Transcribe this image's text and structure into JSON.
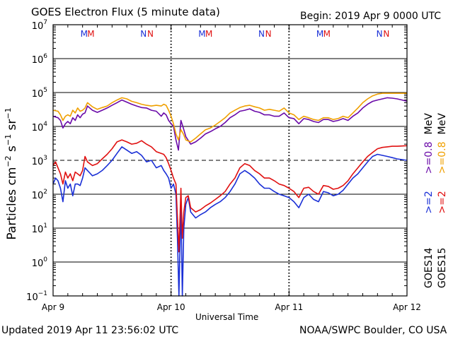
{
  "header": {
    "title": "GOES Electron Flux (5 minute data)",
    "begin": "Begin: 2019 Apr 9 0000 UTC"
  },
  "footer": {
    "updated": "Updated 2019 Apr 11 23:56:02 UTC",
    "credit": "NOAA/SWPC Boulder, CO USA"
  },
  "chart_data": {
    "type": "line",
    "title": "GOES Electron Flux (5 minute data)",
    "xlabel": "Universal Time",
    "ylabel": "Particles cm-2 s-1 sr-1",
    "y_scale": "log",
    "ylim": [
      0.1,
      10000000
    ],
    "xlim": [
      0,
      72
    ],
    "x_unit": "hours since 2019 Apr 9 0000 UTC",
    "x_tick_labels": [
      {
        "x": 0,
        "label": "Apr 9"
      },
      {
        "x": 24,
        "label": "Apr 10"
      },
      {
        "x": 48,
        "label": "Apr 11"
      },
      {
        "x": 72,
        "label": "Apr 12"
      }
    ],
    "y_ticks": [
      {
        "value": 0.1,
        "mantissa": "10",
        "exp": "−1"
      },
      {
        "value": 1,
        "mantissa": "10",
        "exp": "0"
      },
      {
        "value": 10,
        "mantissa": "10",
        "exp": "1"
      },
      {
        "value": 100,
        "mantissa": "10",
        "exp": "2"
      },
      {
        "value": 1000,
        "mantissa": "10",
        "exp": "3"
      },
      {
        "value": 10000,
        "mantissa": "10",
        "exp": "4"
      },
      {
        "value": 100000,
        "mantissa": "10",
        "exp": "5"
      },
      {
        "value": 1000000,
        "mantissa": "10",
        "exp": "6"
      },
      {
        "value": 10000000,
        "mantissa": "10",
        "exp": "7"
      }
    ],
    "threshold_line": {
      "value": 1000,
      "style": "dashed"
    },
    "markers": [
      {
        "x": 6.3,
        "label": "M",
        "color": "#1a2fd6"
      },
      {
        "x": 7.7,
        "label": "M",
        "color": "#e01010"
      },
      {
        "x": 18.4,
        "label": "N",
        "color": "#1a2fd6"
      },
      {
        "x": 19.8,
        "label": "N",
        "color": "#e01010"
      },
      {
        "x": 30.3,
        "label": "M",
        "color": "#1a2fd6"
      },
      {
        "x": 31.7,
        "label": "M",
        "color": "#e01010"
      },
      {
        "x": 42.4,
        "label": "N",
        "color": "#1a2fd6"
      },
      {
        "x": 43.8,
        "label": "N",
        "color": "#e01010"
      },
      {
        "x": 54.3,
        "label": "M",
        "color": "#1a2fd6"
      },
      {
        "x": 55.7,
        "label": "M",
        "color": "#e01010"
      },
      {
        "x": 66.4,
        "label": "N",
        "color": "#1a2fd6"
      },
      {
        "x": 67.8,
        "label": "N",
        "color": "#e01010"
      }
    ],
    "legend": {
      "placement": "right-vertical",
      "groups": [
        {
          "satellite": "GOES14",
          "entries": [
            {
              "text": ">=2",
              "color": "#1a2fd6"
            },
            {
              "text": ">=0.8",
              "color": "#6a0aa8"
            }
          ]
        },
        {
          "satellite": "GOES15",
          "entries": [
            {
              "text": ">=2",
              "color": "#e01010"
            },
            {
              "text": ">=0.8",
              "color": "#f0a000"
            }
          ]
        }
      ],
      "unit": "MeV"
    },
    "series": [
      {
        "name": "GOES14 >=0.8 MeV",
        "color": "#6a0aa8",
        "x": [
          0,
          1,
          1.5,
          2,
          2.5,
          3,
          3.5,
          4,
          4.5,
          5,
          5.5,
          6,
          6.5,
          7,
          8,
          9,
          10,
          11,
          12,
          13,
          14,
          15,
          16,
          17,
          18,
          19,
          20,
          21,
          22,
          22.5,
          23,
          23.5,
          24,
          24.5,
          25,
          25.5,
          26,
          26.5,
          27,
          28,
          29,
          30,
          31,
          32,
          33,
          34,
          35,
          36,
          37,
          38,
          39,
          40,
          41,
          42,
          43,
          44,
          45,
          46,
          47,
          48,
          49,
          50,
          51,
          52,
          53,
          54,
          55,
          56,
          57,
          58,
          59,
          60,
          61,
          62,
          63,
          64,
          65,
          66,
          67,
          68,
          69,
          70,
          71,
          72
        ],
        "y": [
          20000,
          18000,
          15000,
          9000,
          12000,
          14000,
          12000,
          18000,
          15000,
          22000,
          18000,
          23000,
          25000,
          40000,
          30000,
          26000,
          30000,
          35000,
          42000,
          50000,
          60000,
          52000,
          45000,
          40000,
          36000,
          35000,
          30000,
          28000,
          20000,
          25000,
          22000,
          15000,
          12000,
          10000,
          4000,
          2000,
          15000,
          9000,
          5000,
          3000,
          3500,
          4500,
          6000,
          7000,
          8500,
          10000,
          13000,
          18000,
          22000,
          28000,
          30000,
          33000,
          28000,
          26000,
          22000,
          22000,
          20000,
          20000,
          25000,
          18000,
          17000,
          12000,
          17000,
          16000,
          14000,
          13000,
          16000,
          16000,
          14000,
          15000,
          17000,
          15000,
          20000,
          25000,
          35000,
          45000,
          55000,
          60000,
          65000,
          70000,
          68000,
          65000,
          60000,
          55000
        ]
      },
      {
        "name": "GOES15 >=0.8 MeV",
        "color": "#f0a000",
        "x": [
          0,
          1,
          1.5,
          2,
          2.5,
          3,
          3.5,
          4,
          4.5,
          5,
          5.5,
          6,
          6.5,
          7,
          8,
          9,
          10,
          11,
          12,
          13,
          14,
          15,
          16,
          17,
          18,
          19,
          20,
          21,
          22,
          22.5,
          23,
          23.5,
          24,
          24.5,
          25,
          25.5,
          26,
          26.5,
          27,
          28,
          29,
          30,
          31,
          32,
          33,
          34,
          35,
          36,
          37,
          38,
          39,
          40,
          41,
          42,
          43,
          44,
          45,
          46,
          47,
          48,
          49,
          50,
          51,
          52,
          53,
          54,
          55,
          56,
          57,
          58,
          59,
          60,
          61,
          62,
          63,
          64,
          65,
          66,
          67,
          68,
          69,
          70,
          71,
          72
        ],
        "y": [
          30000,
          28000,
          22000,
          15000,
          20000,
          22000,
          20000,
          30000,
          25000,
          35000,
          28000,
          30000,
          35000,
          50000,
          38000,
          32000,
          36000,
          40000,
          50000,
          60000,
          70000,
          65000,
          55000,
          50000,
          45000,
          42000,
          40000,
          42000,
          40000,
          45000,
          42000,
          30000,
          20000,
          12000,
          6000,
          4000,
          8000,
          6000,
          4000,
          3500,
          4500,
          6000,
          8000,
          9000,
          11000,
          14000,
          18000,
          25000,
          30000,
          36000,
          40000,
          42000,
          38000,
          35000,
          30000,
          32000,
          30000,
          28000,
          35000,
          25000,
          22000,
          16000,
          20000,
          18000,
          16000,
          15000,
          18000,
          18000,
          16000,
          17000,
          20000,
          18000,
          25000,
          35000,
          50000,
          65000,
          80000,
          90000,
          95000,
          95000,
          95000,
          95000,
          95000,
          95000
        ]
      },
      {
        "name": "GOES14 >=2 MeV",
        "color": "#1a2fd6",
        "x": [
          0,
          0.5,
          1,
          1.5,
          2,
          2.5,
          3,
          3.5,
          4,
          4.5,
          5,
          5.5,
          6,
          6.5,
          7,
          8,
          9,
          10,
          11,
          12,
          13,
          14,
          15,
          16,
          17,
          18,
          19,
          20,
          21,
          22,
          22.5,
          23,
          23.5,
          24,
          24.5,
          25,
          25.3,
          25.6,
          26,
          26.3,
          26.6,
          27,
          27.5,
          28,
          29,
          30,
          31,
          32,
          33,
          34,
          35,
          36,
          37,
          38,
          39,
          40,
          41,
          42,
          43,
          44,
          45,
          46,
          47,
          48,
          49,
          50,
          51,
          52,
          53,
          54,
          55,
          56,
          57,
          58,
          59,
          60,
          61,
          62,
          63,
          64,
          65,
          66,
          67,
          68,
          69,
          70,
          71,
          72
        ],
        "y": [
          200,
          300,
          250,
          150,
          60,
          250,
          150,
          200,
          90,
          200,
          200,
          180,
          300,
          600,
          500,
          350,
          400,
          500,
          700,
          1000,
          1600,
          2500,
          2000,
          1600,
          1800,
          1400,
          900,
          1000,
          600,
          700,
          500,
          400,
          300,
          150,
          200,
          100,
          5,
          0.1,
          60,
          0.1,
          10,
          50,
          80,
          30,
          20,
          25,
          30,
          40,
          50,
          60,
          80,
          120,
          200,
          400,
          500,
          400,
          300,
          200,
          150,
          150,
          120,
          100,
          90,
          80,
          60,
          40,
          80,
          100,
          70,
          60,
          120,
          110,
          90,
          100,
          130,
          200,
          300,
          400,
          600,
          900,
          1300,
          1500,
          1400,
          1300,
          1200,
          1100,
          1050,
          1000
        ]
      },
      {
        "name": "GOES15 >=2 MeV",
        "color": "#e01010",
        "x": [
          0,
          0.5,
          1,
          1.5,
          2,
          2.5,
          3,
          3.5,
          4,
          4.5,
          5,
          5.5,
          6,
          6.5,
          7,
          8,
          9,
          10,
          11,
          12,
          13,
          14,
          15,
          16,
          17,
          18,
          19,
          20,
          21,
          22,
          22.5,
          23,
          23.5,
          24,
          24.5,
          25,
          25.3,
          25.6,
          26,
          26.3,
          26.6,
          27,
          27.5,
          28,
          29,
          30,
          31,
          32,
          33,
          34,
          35,
          36,
          37,
          38,
          39,
          40,
          41,
          42,
          43,
          44,
          45,
          46,
          47,
          48,
          49,
          50,
          51,
          52,
          53,
          54,
          55,
          56,
          57,
          58,
          59,
          60,
          61,
          62,
          63,
          64,
          65,
          66,
          67,
          68,
          69,
          70,
          71,
          72
        ],
        "y": [
          700,
          900,
          600,
          400,
          200,
          450,
          300,
          400,
          250,
          450,
          400,
          350,
          500,
          1300,
          900,
          700,
          800,
          1100,
          1500,
          2200,
          3500,
          4000,
          3500,
          3000,
          3200,
          3800,
          3000,
          2500,
          1800,
          1600,
          1500,
          1200,
          800,
          500,
          300,
          200,
          20,
          2,
          150,
          5,
          30,
          80,
          90,
          40,
          30,
          35,
          45,
          55,
          70,
          90,
          120,
          200,
          300,
          600,
          800,
          700,
          500,
          400,
          300,
          300,
          250,
          200,
          180,
          150,
          120,
          80,
          150,
          160,
          120,
          100,
          180,
          170,
          140,
          150,
          180,
          250,
          400,
          600,
          900,
          1300,
          1700,
          2200,
          2400,
          2500,
          2600,
          2600,
          2650,
          2700
        ]
      }
    ]
  }
}
